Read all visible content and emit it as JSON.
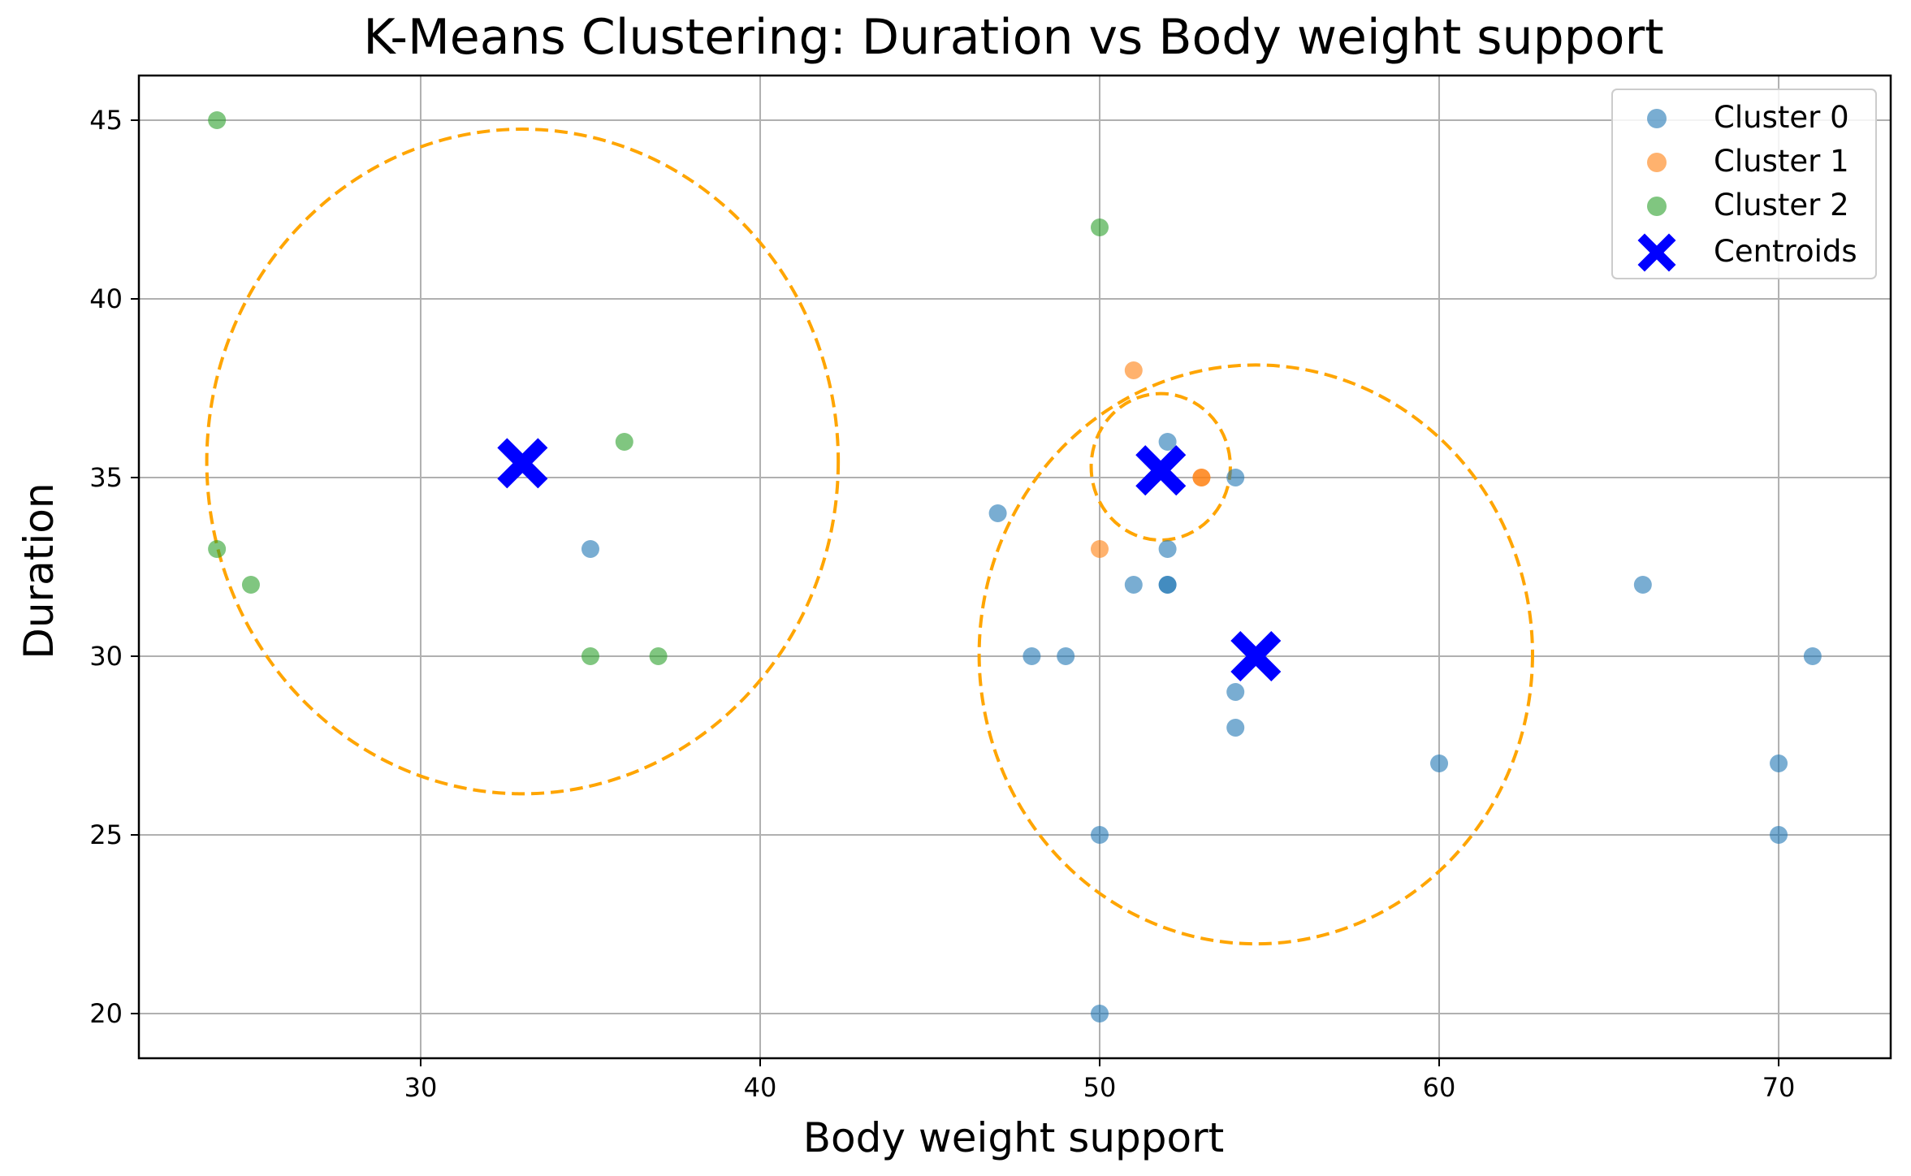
{
  "chart_data": {
    "type": "scatter",
    "title": "K-Means Clustering: Duration vs Body weight support",
    "xlabel": "Body weight support",
    "ylabel": "Duration",
    "xlim": [
      21.7,
      73.3
    ],
    "ylim": [
      18.75,
      46.25
    ],
    "xticks": [
      30,
      40,
      50,
      60,
      70
    ],
    "yticks": [
      20,
      25,
      30,
      35,
      40,
      45
    ],
    "grid": true,
    "legend_position": "top-right",
    "series": [
      {
        "name": "Cluster 0",
        "color": "#1f77b4",
        "points": [
          {
            "x": 35,
            "y": 33
          },
          {
            "x": 47,
            "y": 34
          },
          {
            "x": 48,
            "y": 30
          },
          {
            "x": 49,
            "y": 30
          },
          {
            "x": 50,
            "y": 25
          },
          {
            "x": 50,
            "y": 20
          },
          {
            "x": 51,
            "y": 32
          },
          {
            "x": 52,
            "y": 36
          },
          {
            "x": 52,
            "y": 33
          },
          {
            "x": 52,
            "y": 32
          },
          {
            "x": 52,
            "y": 32
          },
          {
            "x": 54,
            "y": 35
          },
          {
            "x": 54,
            "y": 29
          },
          {
            "x": 54,
            "y": 28
          },
          {
            "x": 60,
            "y": 27
          },
          {
            "x": 66,
            "y": 32
          },
          {
            "x": 70,
            "y": 27
          },
          {
            "x": 70,
            "y": 25
          },
          {
            "x": 71,
            "y": 30
          }
        ]
      },
      {
        "name": "Cluster 1",
        "color": "#ff7f0e",
        "points": [
          {
            "x": 51,
            "y": 38
          },
          {
            "x": 53,
            "y": 35
          },
          {
            "x": 53,
            "y": 35
          },
          {
            "x": 50,
            "y": 33
          }
        ]
      },
      {
        "name": "Cluster 2",
        "color": "#2ca02c",
        "points": [
          {
            "x": 24,
            "y": 45
          },
          {
            "x": 24,
            "y": 33
          },
          {
            "x": 25,
            "y": 32
          },
          {
            "x": 35,
            "y": 30
          },
          {
            "x": 36,
            "y": 36
          },
          {
            "x": 37,
            "y": 30
          },
          {
            "x": 50,
            "y": 42
          }
        ]
      }
    ],
    "centroids": {
      "name": "Centroids",
      "color": "#0000ff",
      "points": [
        {
          "x": 33.0,
          "y": 35.4
        },
        {
          "x": 51.8,
          "y": 35.2
        },
        {
          "x": 54.6,
          "y": 30.0
        }
      ]
    },
    "cluster_boundaries": {
      "color": "#ffa500",
      "style": "dashed",
      "circles": [
        {
          "cx": 33.0,
          "cy": 35.45,
          "rx": 9.3,
          "ry": 9.3
        },
        {
          "cx": 51.8,
          "cy": 35.3,
          "rx": 2.05,
          "ry": 2.05
        },
        {
          "cx": 54.6,
          "cy": 30.05,
          "rx": 8.15,
          "ry": 8.1
        }
      ]
    }
  }
}
